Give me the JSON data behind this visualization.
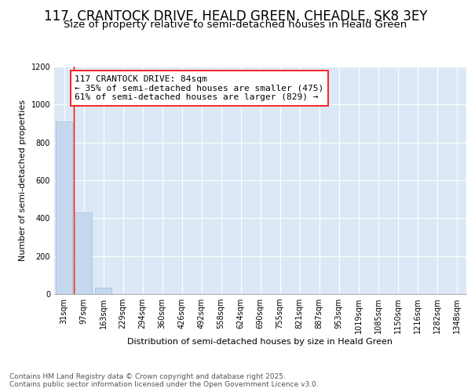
{
  "title1": "117, CRANTOCK DRIVE, HEALD GREEN, CHEADLE, SK8 3EY",
  "title2": "Size of property relative to semi-detached houses in Heald Green",
  "xlabel": "Distribution of semi-detached houses by size in Heald Green",
  "ylabel": "Number of semi-detached properties",
  "categories": [
    "31sqm",
    "97sqm",
    "163sqm",
    "229sqm",
    "294sqm",
    "360sqm",
    "426sqm",
    "492sqm",
    "558sqm",
    "624sqm",
    "690sqm",
    "755sqm",
    "821sqm",
    "887sqm",
    "953sqm",
    "1019sqm",
    "1085sqm",
    "1150sqm",
    "1216sqm",
    "1282sqm",
    "1348sqm"
  ],
  "values": [
    910,
    430,
    35,
    0,
    0,
    0,
    0,
    0,
    0,
    0,
    0,
    0,
    0,
    0,
    0,
    0,
    0,
    0,
    0,
    0,
    0
  ],
  "bar_color": "#c5d8ed",
  "bar_edgecolor": "#a0bcd8",
  "annotation_text": "117 CRANTOCK DRIVE: 84sqm\n← 35% of semi-detached houses are smaller (475)\n61% of semi-detached houses are larger (829) →",
  "red_line_x": 0.5,
  "ylim": [
    0,
    1200
  ],
  "yticks": [
    0,
    200,
    400,
    600,
    800,
    1000,
    1200
  ],
  "bg_color": "#ffffff",
  "plot_bg_color": "#dce8f5",
  "footer_text": "Contains HM Land Registry data © Crown copyright and database right 2025.\nContains public sector information licensed under the Open Government Licence v3.0.",
  "title1_fontsize": 12,
  "title2_fontsize": 9.5,
  "xlabel_fontsize": 8,
  "ylabel_fontsize": 8,
  "tick_fontsize": 7,
  "annotation_fontsize": 8,
  "footer_fontsize": 6.5
}
